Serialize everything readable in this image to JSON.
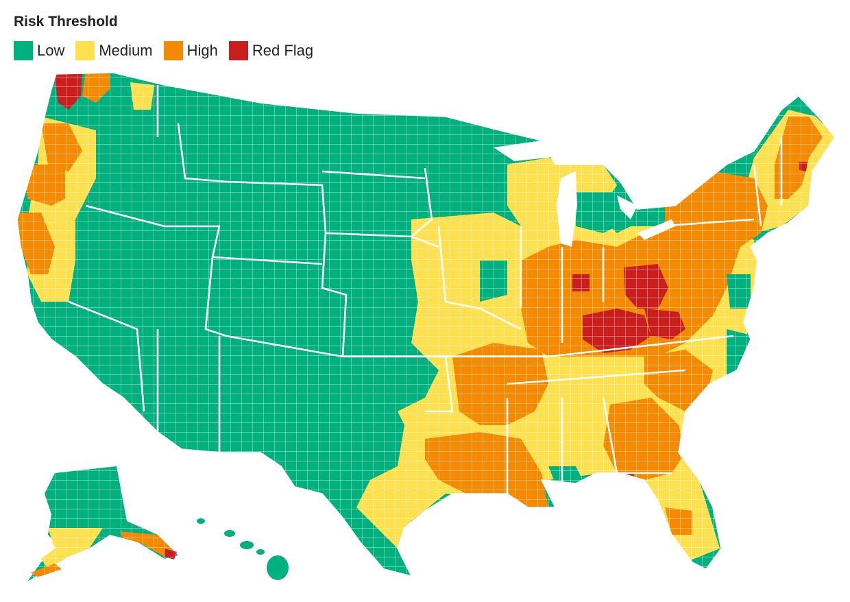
{
  "legend": {
    "title": "Risk Threshold",
    "items": [
      {
        "label": "Low",
        "color": "#00b07f"
      },
      {
        "label": "Medium",
        "color": "#ffe04f"
      },
      {
        "label": "High",
        "color": "#f58a00"
      },
      {
        "label": "Red Flag",
        "color": "#c81e1e"
      }
    ]
  },
  "colors": {
    "low": "#00b07f",
    "medium": "#ffe04f",
    "high": "#f58a00",
    "red_flag": "#c81e1e",
    "borders": "#ffffff"
  },
  "map": {
    "region": "United States counties",
    "insets": [
      "Alaska",
      "Hawaii"
    ]
  }
}
